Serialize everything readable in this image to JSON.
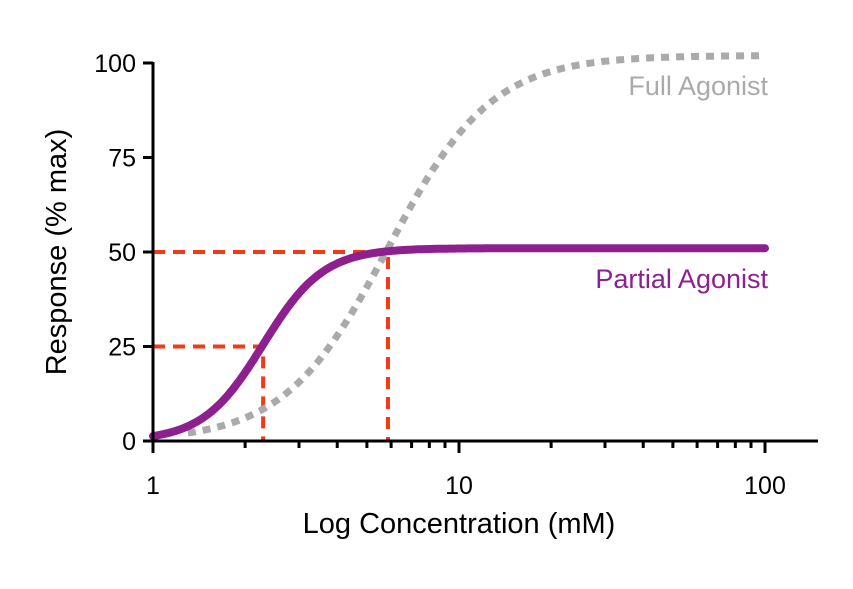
{
  "chart_data": {
    "type": "line",
    "title": "",
    "xlabel": "Log Concentration (mM)",
    "ylabel": "Response (% max)",
    "xscale": "log",
    "xlim": [
      1,
      150
    ],
    "ylim": [
      0,
      100
    ],
    "xticks": [
      1,
      10,
      100
    ],
    "xtick_labels": [
      "1",
      "10",
      "100"
    ],
    "yticks": [
      0,
      25,
      50,
      75,
      100
    ],
    "ytick_labels": [
      "0",
      "25",
      "50",
      "75",
      "100"
    ],
    "grid": false,
    "series": [
      {
        "name": "Full Agonist",
        "style": "dotted",
        "color": "#aaaaaa",
        "model": "hill",
        "max": 102,
        "ec50": 5.86,
        "hill": 2.56,
        "x_start": 1.3,
        "x_end": 100
      },
      {
        "name": "Partial Agonist",
        "style": "solid",
        "color": "#8e1f8e",
        "model": "hill",
        "max": 51,
        "ec50": 2.29,
        "hill": 4.4,
        "x_start": 1,
        "x_end": 100
      }
    ],
    "reference_lines": [
      {
        "x": 2.29,
        "y": 25,
        "color": "#f23a1a"
      },
      {
        "x": 5.86,
        "y": 50,
        "color": "#f23a1a"
      }
    ]
  }
}
